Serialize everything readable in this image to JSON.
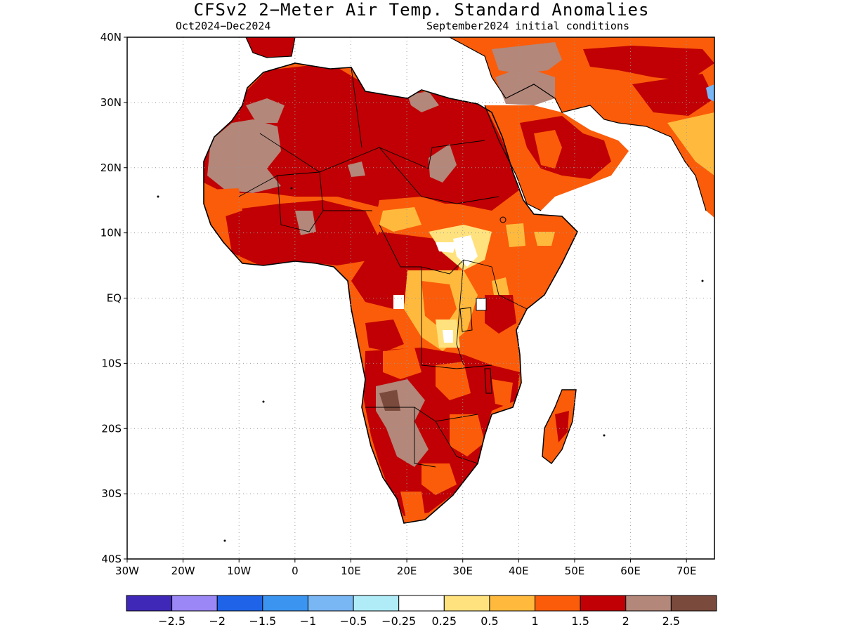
{
  "header": {
    "title": "CFSv2 2−Meter Air Temp. Standard Anomalies",
    "period": "Oct2024−Dec2024",
    "initial_conditions": "September2024 initial conditions"
  },
  "axes": {
    "lon_labels": [
      "30W",
      "20W",
      "10W",
      "0",
      "10E",
      "20E",
      "30E",
      "40E",
      "50E",
      "60E",
      "70E"
    ],
    "lat_labels": [
      "40N",
      "30N",
      "20N",
      "10N",
      "EQ",
      "10S",
      "20S",
      "30S",
      "40S"
    ],
    "lon_range": [
      -30,
      75
    ],
    "lat_range": [
      -40,
      40
    ]
  },
  "legend": {
    "colors": [
      "#3f28b8",
      "#9b87f5",
      "#1f64e8",
      "#3b95f0",
      "#78b6f4",
      "#b0ecf8",
      "#ffffff",
      "#ffe27d",
      "#ffba3d",
      "#fb5c0a",
      "#c00004",
      "#b3877a",
      "#7a4a3d"
    ],
    "labels": [
      "−2.5",
      "−2",
      "−1.5",
      "−1",
      "−0.5",
      "−0.25",
      "0.25",
      "0.5",
      "1",
      "1.5",
      "2",
      "2.5"
    ]
  },
  "colors": {
    "ocean": "#ffffff",
    "land_base": "#fb5c0a",
    "very_high": "#c00004",
    "extreme": "#b3877a",
    "max": "#7a4a3d",
    "moderate": "#ffba3d",
    "low": "#ffe27d"
  }
}
